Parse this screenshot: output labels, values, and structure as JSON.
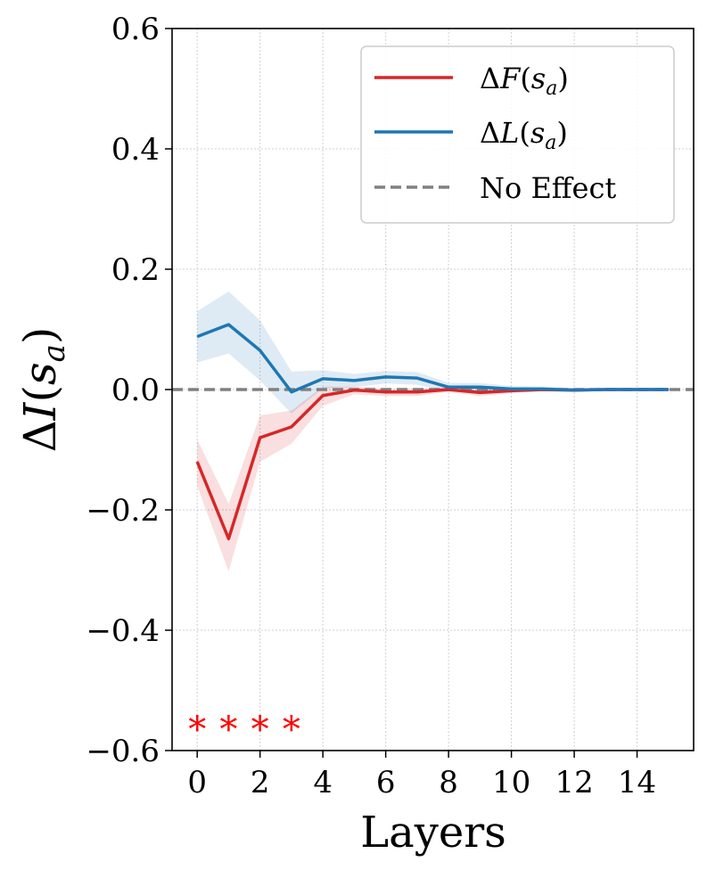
{
  "chart_data": {
    "type": "line",
    "xlabel": "Layers",
    "ylabel": "ΔI(s_a)",
    "xlim": [
      -0.8,
      15.8
    ],
    "ylim": [
      -0.6,
      0.6
    ],
    "x_ticks": [
      0,
      2,
      4,
      6,
      8,
      10,
      12,
      14
    ],
    "y_ticks": [
      -0.6,
      -0.4,
      -0.2,
      0.0,
      0.2,
      0.4,
      0.6
    ],
    "y_tick_labels": [
      "−0.6",
      "−0.4",
      "−0.2",
      "0.0",
      "0.2",
      "0.4",
      "0.6"
    ],
    "grid": true,
    "legend_position": "top-right",
    "x": [
      0,
      1,
      2,
      3,
      4,
      5,
      6,
      7,
      8,
      9,
      10,
      11,
      12,
      13,
      14,
      15
    ],
    "series": [
      {
        "name": "ΔF(s_a)",
        "color": "#d62728",
        "values": [
          -0.12,
          -0.248,
          -0.08,
          -0.062,
          -0.01,
          -0.001,
          -0.004,
          -0.004,
          0.0,
          -0.005,
          -0.002,
          0.0,
          -0.001,
          0.0,
          0.0,
          0.0
        ],
        "lower": [
          -0.16,
          -0.302,
          -0.12,
          -0.09,
          -0.027,
          -0.008,
          -0.011,
          -0.011,
          -0.004,
          -0.011,
          -0.006,
          -0.003,
          -0.004,
          -0.002,
          -0.002,
          -0.002
        ],
        "upper": [
          -0.083,
          -0.19,
          -0.043,
          -0.035,
          0.005,
          0.005,
          0.002,
          0.002,
          0.004,
          0.001,
          0.002,
          0.003,
          0.002,
          0.002,
          0.002,
          0.002
        ]
      },
      {
        "name": "ΔL(s_a)",
        "color": "#1f77b4",
        "values": [
          0.088,
          0.108,
          0.065,
          -0.004,
          0.018,
          0.015,
          0.021,
          0.019,
          0.004,
          0.004,
          0.001,
          0.001,
          -0.001,
          0.0,
          0.0,
          0.0
        ],
        "lower": [
          0.045,
          0.06,
          0.015,
          -0.04,
          0.002,
          0.004,
          0.01,
          0.008,
          -0.003,
          -0.003,
          -0.004,
          -0.003,
          -0.004,
          -0.002,
          -0.002,
          -0.002
        ],
        "upper": [
          0.13,
          0.163,
          0.115,
          0.03,
          0.032,
          0.026,
          0.031,
          0.029,
          0.011,
          0.011,
          0.006,
          0.005,
          0.002,
          0.002,
          0.002,
          0.002
        ]
      }
    ],
    "reference_line": {
      "name": "No Effect",
      "y": 0.0,
      "color": "#808080",
      "style": "dashed"
    },
    "significance_markers": {
      "symbol": "*",
      "color": "#ff0000",
      "x": [
        0,
        1,
        2,
        3
      ]
    }
  }
}
